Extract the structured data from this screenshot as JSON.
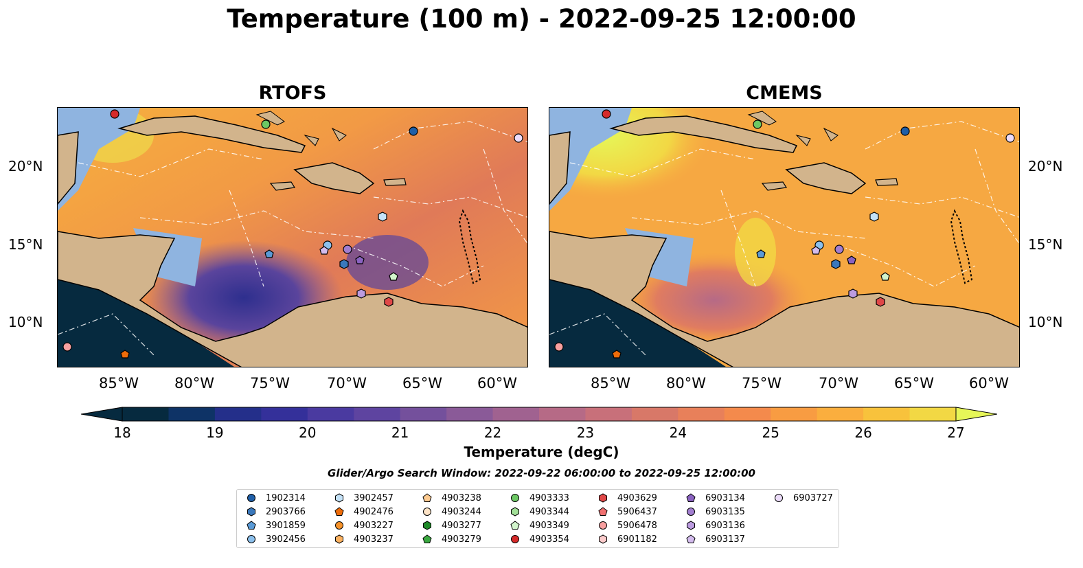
{
  "title": "Temperature (100 m) - 2022-09-25 12:00:00",
  "panels": [
    {
      "title": "RTOFS"
    },
    {
      "title": "CMEMS"
    }
  ],
  "lat_labels": [
    "20°N",
    "15°N",
    "10°N"
  ],
  "lon_labels": [
    "85°W",
    "80°W",
    "75°W",
    "70°W",
    "65°W",
    "60°W"
  ],
  "colorbar": {
    "label": "Temperature (degC)",
    "ticks": [
      "18",
      "19",
      "20",
      "21",
      "22",
      "23",
      "24",
      "25",
      "26",
      "27"
    ],
    "min": 18,
    "max": 27,
    "colors": [
      "#062a3f",
      "#0e3366",
      "#242f8a",
      "#34309a",
      "#4a3aa0",
      "#5e44a0",
      "#74509c",
      "#8a5a98",
      "#a06290",
      "#b66a86",
      "#c8707a",
      "#d87868",
      "#e8805a",
      "#f48a4c",
      "#f89c42",
      "#faae3e",
      "#f8c23c",
      "#f2d844"
    ],
    "extend_low": "#062a3f",
    "extend_high": "#e6f658"
  },
  "search_window": "Glider/Argo Search Window: 2022-09-22 06:00:00 to 2022-09-25 12:00:00",
  "legend": [
    {
      "id": "1902314",
      "color": "#1f5fa8",
      "shape": "circle"
    },
    {
      "id": "2903766",
      "color": "#3a78bc",
      "shape": "hexagon"
    },
    {
      "id": "3901859",
      "color": "#5a9ad6",
      "shape": "pentagon"
    },
    {
      "id": "3902456",
      "color": "#8cc0ec",
      "shape": "circle"
    },
    {
      "id": "3902457",
      "color": "#c4e2f8",
      "shape": "hexagon"
    },
    {
      "id": "4902476",
      "color": "#ee6c0a",
      "shape": "pentagon"
    },
    {
      "id": "4903227",
      "color": "#f7932a",
      "shape": "circle"
    },
    {
      "id": "4903237",
      "color": "#fbb160",
      "shape": "hexagon"
    },
    {
      "id": "4903238",
      "color": "#fdca90",
      "shape": "pentagon"
    },
    {
      "id": "4903244",
      "color": "#fde3c6",
      "shape": "circle"
    },
    {
      "id": "4903277",
      "color": "#1e8a28",
      "shape": "hexagon"
    },
    {
      "id": "4903279",
      "color": "#3aa840",
      "shape": "pentagon"
    },
    {
      "id": "4903333",
      "color": "#6cc864",
      "shape": "circle"
    },
    {
      "id": "4903344",
      "color": "#a2e098",
      "shape": "hexagon"
    },
    {
      "id": "4903349",
      "color": "#d2f4cc",
      "shape": "pentagon"
    },
    {
      "id": "4903354",
      "color": "#d62a2a",
      "shape": "circle"
    },
    {
      "id": "4903629",
      "color": "#e04848",
      "shape": "hexagon"
    },
    {
      "id": "5906437",
      "color": "#f07070",
      "shape": "pentagon"
    },
    {
      "id": "5906478",
      "color": "#f8a0a0",
      "shape": "circle"
    },
    {
      "id": "6901182",
      "color": "#fccccc",
      "shape": "hexagon"
    },
    {
      "id": "6903134",
      "color": "#8a62c0",
      "shape": "pentagon"
    },
    {
      "id": "6903135",
      "color": "#a27ed0",
      "shape": "circle"
    },
    {
      "id": "6903136",
      "color": "#bc9ce0",
      "shape": "hexagon"
    },
    {
      "id": "6903137",
      "color": "#d4bcee",
      "shape": "pentagon"
    },
    {
      "id": "6903727",
      "color": "#ecdcfa",
      "shape": "circle"
    }
  ]
}
